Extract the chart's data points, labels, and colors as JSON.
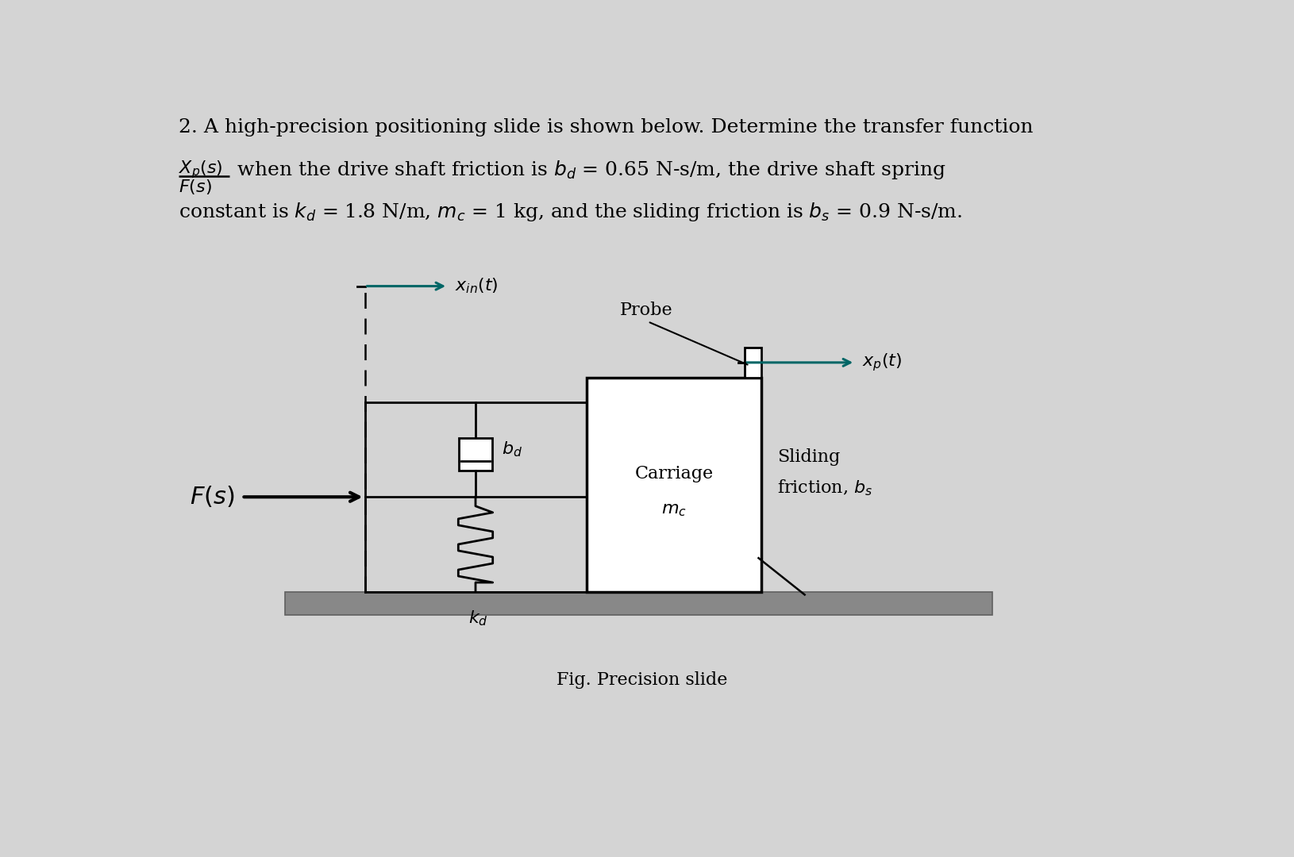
{
  "bg_color": "#d4d4d4",
  "text_color": "#000000",
  "title_line1": "2. A high-precision positioning slide is shown below. Determine the transfer function",
  "title_line2_rest": " when the drive shaft friction is $b_d$ = 0.65 N-s/m, the drive shaft spring",
  "title_line3": "constant is $k_d$ = 1.8 N/m, $m_c$ = 1 kg, and the sliding friction is $b_s$ = 0.9 N-s/m.",
  "fig_caption": "Fig. Precision slide",
  "label_xin": "$x_{in}(t)$",
  "label_xp": "$x_p(t)$",
  "label_Fs": "$F(s)$",
  "label_bd": "$b_d$",
  "label_kd": "$k_d$",
  "label_carriage": "Carriage",
  "label_mc": "$m_c$",
  "label_probe": "Probe",
  "label_sliding": "Sliding",
  "label_friction_bs": "friction, $b_s$",
  "arrow_color": "#006666",
  "fs_main": 18,
  "fs_label": 16,
  "fs_small": 15
}
